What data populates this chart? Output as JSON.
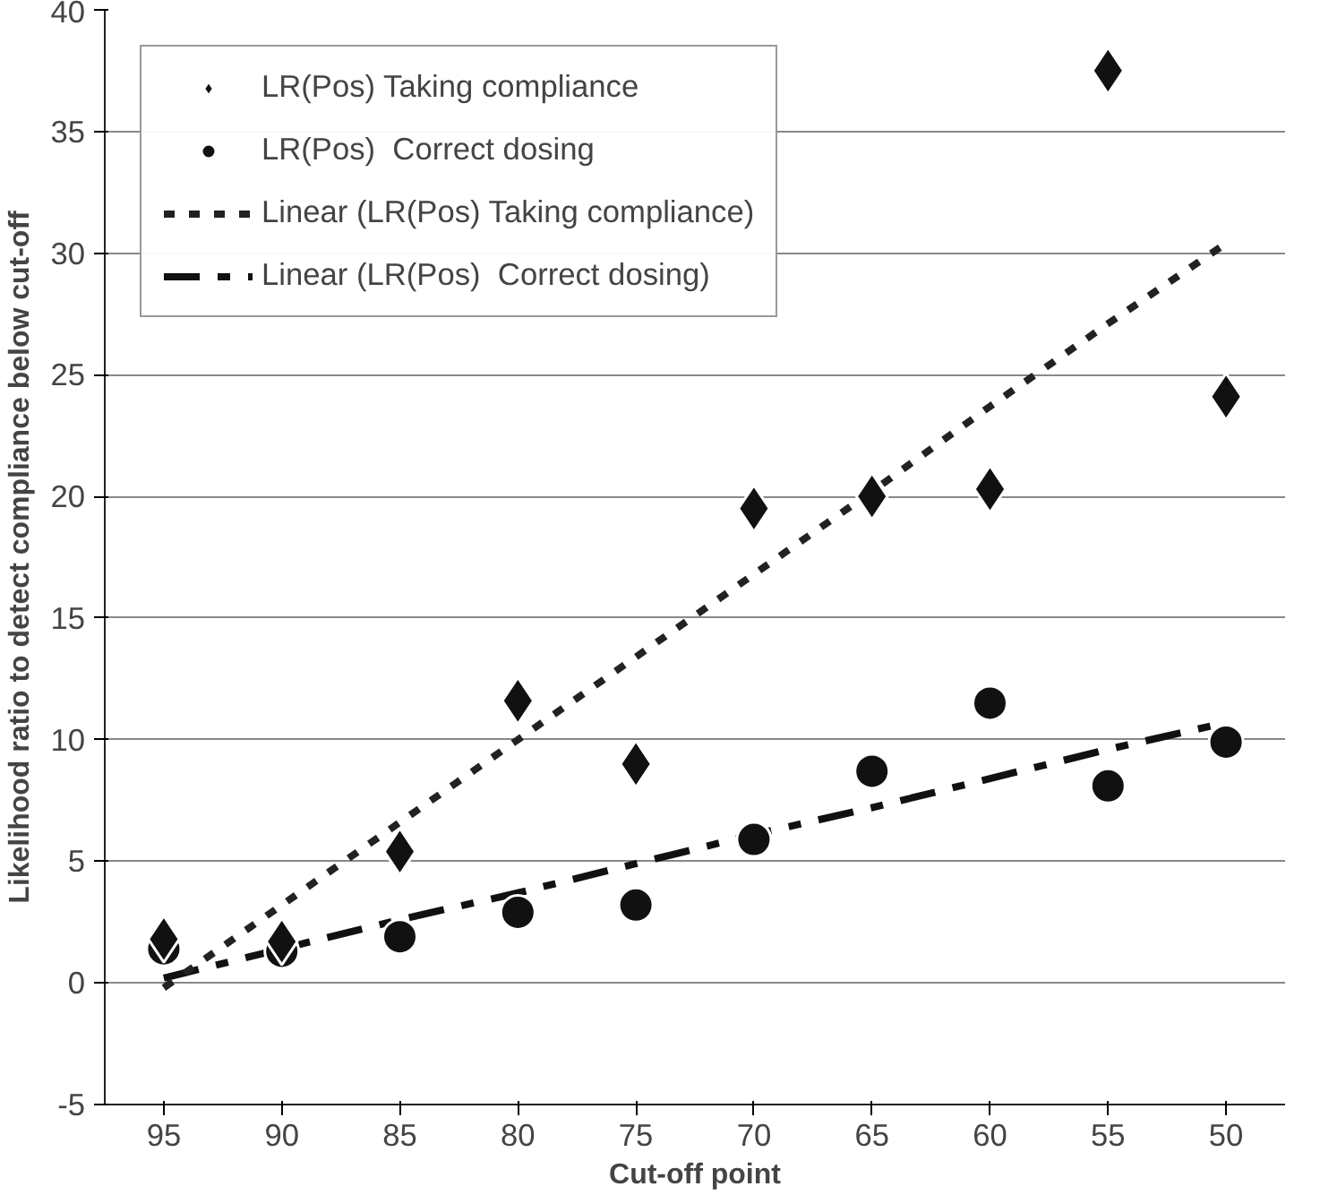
{
  "chart_data": {
    "type": "scatter",
    "xlabel": "Cut-off point",
    "ylabel": "Likelihood ratio to detect compliance below cut-off",
    "categories": [
      "95",
      "90",
      "85",
      "80",
      "75",
      "70",
      "65",
      "60",
      "55",
      "50"
    ],
    "series": [
      {
        "name": "LR(Pos) Taking compliance",
        "color": "#111111",
        "marker": "diamond",
        "values": [
          1.8,
          1.7,
          5.4,
          11.6,
          9.0,
          19.5,
          20.0,
          20.3,
          37.5,
          24.1
        ]
      },
      {
        "name": "LR(Pos)  Correct dosing",
        "color": "#111111",
        "marker": "circle",
        "values": [
          1.4,
          1.3,
          1.9,
          2.9,
          3.2,
          5.9,
          8.7,
          11.5,
          8.1,
          9.9
        ]
      },
      {
        "name": "Linear (LR(Pos) Taking compliance)",
        "type": "line",
        "line_style": "dotted",
        "color": "#222222",
        "values": [
          -0.2,
          3.2,
          6.6,
          10.0,
          13.4,
          16.8,
          20.2,
          23.7,
          27.1,
          30.4
        ]
      },
      {
        "name": "Linear (LR(Pos)  Correct dosing)",
        "type": "line",
        "line_style": "dashed",
        "color": "#111111",
        "values": [
          0.2,
          1.4,
          2.6,
          3.7,
          4.9,
          6.1,
          7.2,
          8.4,
          9.6,
          10.7
        ]
      }
    ],
    "ylim": [
      -5,
      40
    ],
    "yticks": [
      -5,
      0,
      5,
      10,
      15,
      20,
      25,
      30,
      35,
      40
    ],
    "grid": "y",
    "legend": "top left"
  }
}
